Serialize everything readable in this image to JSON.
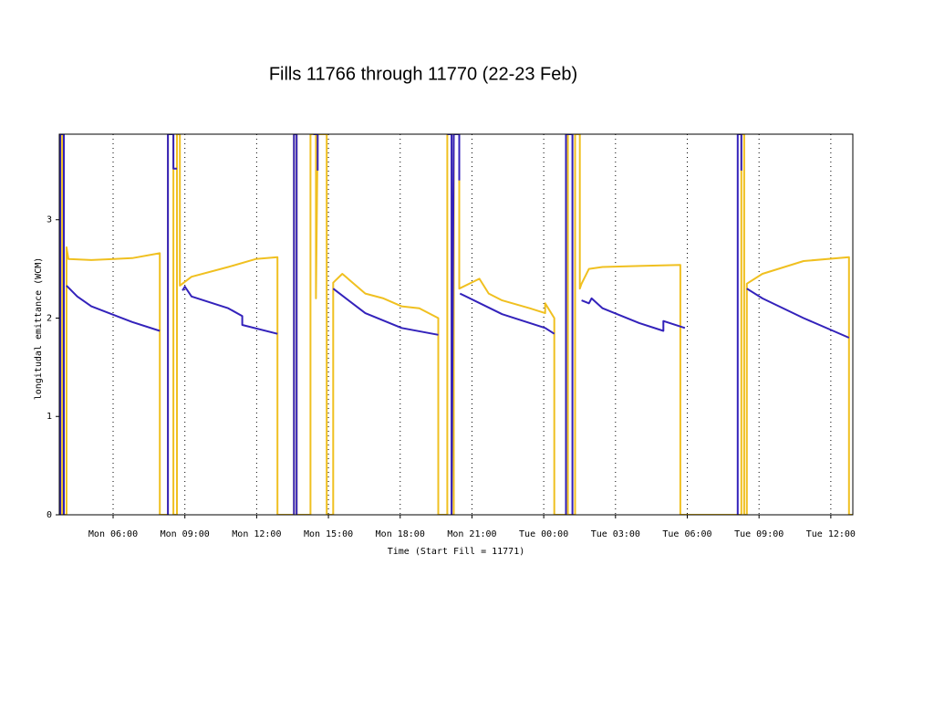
{
  "chart_data": {
    "type": "line",
    "title": "Fills 11766 through 11770 (22-23 Feb)",
    "x_label": "Time (Start Fill = 11771)",
    "y_label": "longitudal emittance (WCM)",
    "xlim": [
      3.75,
      36.92
    ],
    "ylim": [
      0,
      3.87
    ],
    "xticks": [
      {
        "value": 6,
        "label": "Mon 06:00"
      },
      {
        "value": 9,
        "label": "Mon 09:00"
      },
      {
        "value": 12,
        "label": "Mon 12:00"
      },
      {
        "value": 15,
        "label": "Mon 15:00"
      },
      {
        "value": 18,
        "label": "Mon 18:00"
      },
      {
        "value": 21,
        "label": "Mon 21:00"
      },
      {
        "value": 24,
        "label": "Tue 00:00"
      },
      {
        "value": 27,
        "label": "Tue 03:00"
      },
      {
        "value": 30,
        "label": "Tue 06:00"
      },
      {
        "value": 33,
        "label": "Tue 09:00"
      },
      {
        "value": 36,
        "label": "Tue 12:00"
      }
    ],
    "yticks": [
      0,
      1,
      2,
      3
    ],
    "grid": true,
    "series": [
      {
        "color": "#f0c020",
        "x": [
          3.79,
          3.79,
          3.87,
          3.87,
          4.05,
          4.05,
          4.13,
          5.09,
          6.8,
          7.95,
          7.95,
          8.29,
          8.29,
          8.52,
          8.52,
          8.67,
          8.67,
          8.79,
          8.79,
          9.28,
          10.81,
          11.96,
          12.87,
          12.87,
          13.56,
          13.56,
          13.67,
          13.67,
          14.25,
          14.25,
          14.48,
          14.48,
          14.55,
          14.93,
          14.93,
          15.2,
          15.2,
          15.58,
          16.54,
          17.3,
          18.06,
          18.8,
          19.59,
          19.59,
          19.97,
          19.97,
          20.15,
          20.15,
          20.24,
          20.24,
          20.47,
          20.47,
          21.31,
          21.7,
          22.26,
          23.41,
          24.06,
          24.06,
          24.44,
          24.44,
          24.93,
          24.93,
          25.01,
          25.01,
          25.31,
          25.31,
          25.51,
          25.51,
          25.58,
          25.89,
          26.46,
          27.99,
          29.71,
          29.71,
          32.26,
          32.26,
          32.38,
          32.38,
          32.49,
          32.49,
          33.14,
          34.86,
          36.76,
          36.76,
          36.92
        ],
        "values": [
          0,
          3.87,
          3.87,
          0,
          0,
          2.72,
          2.6,
          2.59,
          2.61,
          2.66,
          0,
          0,
          3.87,
          3.87,
          0,
          0,
          3.87,
          3.87,
          2.33,
          2.42,
          2.52,
          2.6,
          2.62,
          0,
          0,
          3.87,
          3.87,
          0,
          0,
          3.87,
          3.87,
          2.2,
          3.87,
          3.87,
          0,
          0,
          2.36,
          2.45,
          2.25,
          2.2,
          2.12,
          2.1,
          2.0,
          0,
          0,
          3.87,
          3.87,
          0,
          0,
          3.87,
          3.87,
          2.3,
          2.4,
          2.25,
          2.18,
          2.1,
          2.05,
          2.15,
          2.0,
          0,
          0,
          3.87,
          3.87,
          0,
          0,
          3.87,
          3.87,
          2.3,
          2.35,
          2.5,
          2.52,
          2.53,
          2.54,
          0,
          0,
          3.87,
          3.87,
          0,
          0,
          2.35,
          2.45,
          2.58,
          2.62,
          0,
          0
        ]
      },
      {
        "color": "#3322bb",
        "x": [
          3.79,
          3.79,
          3.94,
          3.94,
          4.05,
          4.05,
          4.5,
          5.09,
          6.8,
          7.95,
          7.95,
          8.29,
          8.29,
          8.52,
          8.52,
          8.67,
          8.67,
          8.9,
          9.0,
          9.28,
          10.81,
          11.4,
          11.4,
          12.87,
          12.87,
          13.56,
          13.56,
          13.67,
          13.67,
          13.67,
          14.37,
          14.55,
          14.55,
          14.55,
          15.2,
          16.54,
          18.06,
          19.59,
          19.59,
          19.97,
          20.15,
          20.15,
          20.24,
          20.47,
          20.47,
          20.47,
          20.5,
          22.26,
          24.06,
          24.44,
          24.44,
          24.93,
          24.93,
          25.2,
          25.2,
          25.2,
          25.58,
          25.89,
          26.0,
          26.46,
          27.99,
          29.0,
          29.0,
          29.9,
          29.9,
          32.11,
          32.11,
          32.26,
          32.26,
          32.26,
          32.49,
          33.14,
          34.86,
          36.76
        ],
        "values": [
          0,
          3.87,
          3.87,
          0,
          null,
          2.33,
          2.22,
          2.12,
          1.96,
          1.87,
          null,
          0,
          3.87,
          3.87,
          3.52,
          3.52,
          null,
          2.28,
          2.32,
          2.22,
          2.1,
          2.02,
          1.93,
          1.84,
          null,
          0,
          3.87,
          3.87,
          0,
          null,
          3.87,
          3.87,
          3.5,
          null,
          2.3,
          2.05,
          1.9,
          1.83,
          null,
          3.87,
          3.87,
          0,
          3.87,
          3.87,
          3.4,
          null,
          2.25,
          2.04,
          1.9,
          1.84,
          null,
          0,
          3.87,
          3.87,
          0,
          null,
          2.18,
          2.15,
          2.2,
          2.1,
          1.95,
          1.87,
          1.97,
          1.9,
          null,
          0,
          3.87,
          3.87,
          3.5,
          null,
          2.3,
          2.2,
          2.0,
          1.8
        ]
      }
    ]
  }
}
